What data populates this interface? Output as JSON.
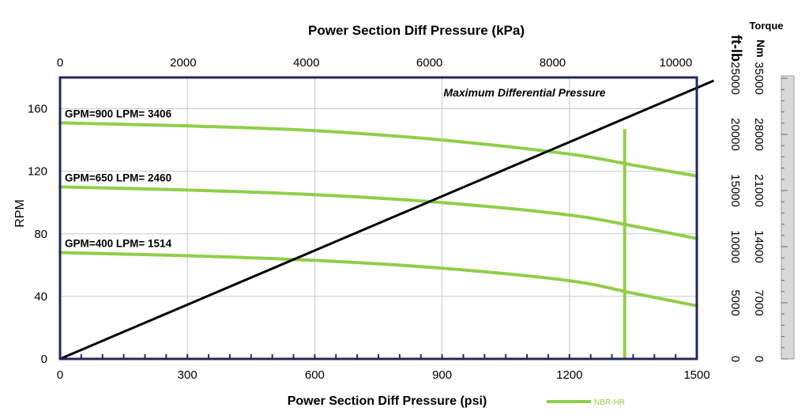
{
  "chart_data": {
    "type": "line",
    "title_top": "Power Section Diff Pressure (kPa)",
    "xlabel": "Power Section Diff Pressure (psi)",
    "ylabel": "RPM",
    "x_psi_range": [
      0,
      1500
    ],
    "x_psi_ticks": [
      0,
      300,
      600,
      900,
      1200,
      1500
    ],
    "x_kpa_range": [
      0,
      10342
    ],
    "x_kpa_ticks": [
      0,
      2000,
      4000,
      6000,
      8000,
      10000
    ],
    "ylim": [
      0,
      180
    ],
    "y_ticks": [
      0,
      40,
      80,
      120,
      160
    ],
    "torque_title": "Torque",
    "torque_ftlb_label": "ft-lb",
    "torque_nm_label": "Nm",
    "torque_ftlb_ticks": [
      "0",
      "5000",
      "10000",
      "15000",
      "20000",
      "25000"
    ],
    "torque_nm_ticks": [
      "0",
      "7000",
      "14000",
      "21000",
      "28000",
      "35000"
    ],
    "annotation_max_dp": "Maximum Differential Pressure",
    "max_dp_psi": 1330,
    "max_dp_line_top_rpm": 147,
    "legend_label": "NBR-HR",
    "series_color": "#92cd4a",
    "torque_line_color": "#000000",
    "frame_color": "#23285e",
    "series": [
      {
        "name": "GPM=900 LPM= 3406",
        "x": [
          0,
          300,
          600,
          900,
          1200,
          1350,
          1500
        ],
        "values": [
          151,
          149,
          146,
          140,
          131,
          124,
          117
        ]
      },
      {
        "name": "GPM=650 LPM= 2460",
        "x": [
          0,
          300,
          600,
          900,
          1200,
          1350,
          1500
        ],
        "values": [
          110,
          108,
          105,
          100,
          92,
          85,
          77
        ]
      },
      {
        "name": "GPM=400 LPM= 1514",
        "x": [
          0,
          300,
          600,
          900,
          1200,
          1350,
          1500
        ],
        "values": [
          68,
          66,
          63,
          58,
          50,
          42,
          34
        ]
      }
    ],
    "torque_line": {
      "name": "Torque",
      "x": [
        0,
        1540
      ],
      "values": [
        0,
        178
      ]
    }
  }
}
